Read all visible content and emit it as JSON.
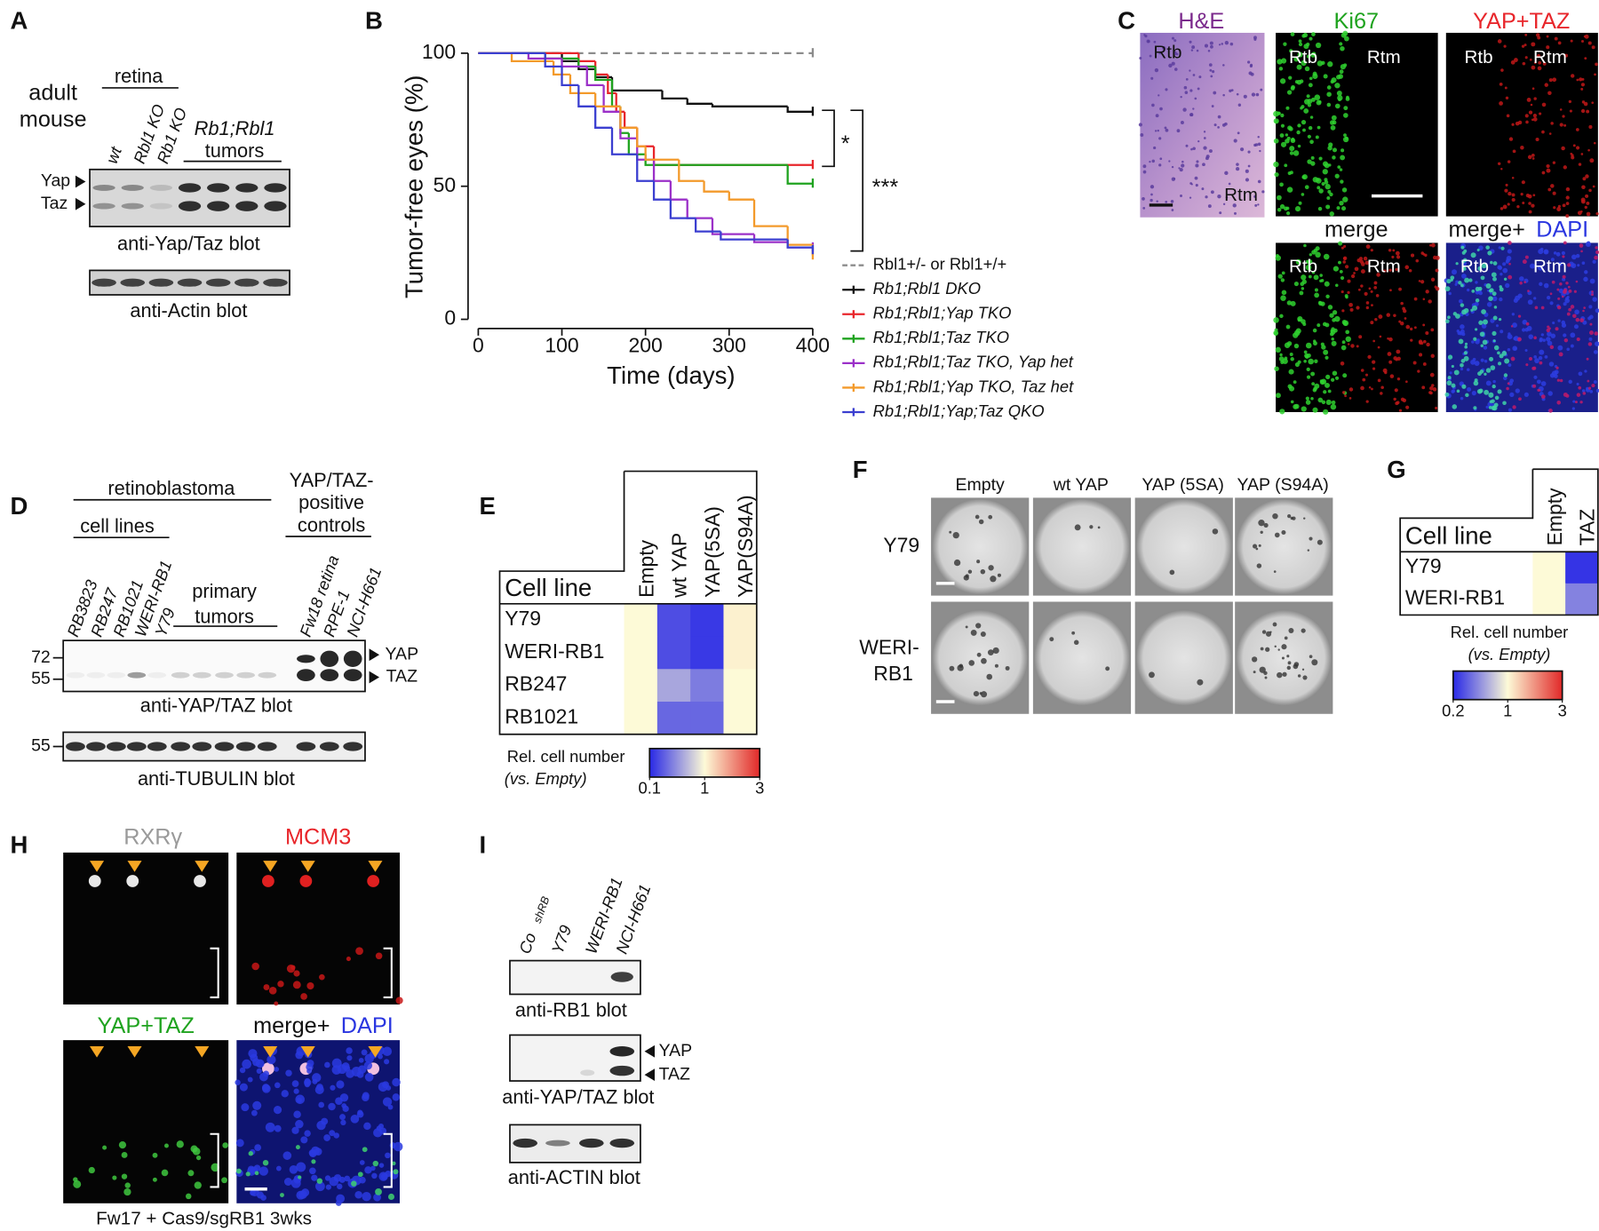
{
  "panel_labels": {
    "a": "A",
    "b": "B",
    "c": "C",
    "d": "D",
    "e": "E",
    "f": "F",
    "g": "G",
    "h": "H",
    "i": "I"
  },
  "panel_a": {
    "title": [
      "adult",
      "mouse"
    ],
    "group_retina": "retina",
    "lanes": [
      "wt",
      "Rbl1 KO",
      "Rb1 KO"
    ],
    "group_tumors": [
      "Rb1;Rbl1",
      "tumors"
    ],
    "bands": [
      "Yap",
      "Taz"
    ],
    "blot_top": "anti-Yap/Taz blot",
    "blot_bottom": "anti-Actin blot"
  },
  "chart_data": {
    "type": "line",
    "step": true,
    "xlabel": "Time (days)",
    "ylabel": "Tumor-free eyes (%)",
    "xlim": [
      0,
      400
    ],
    "ylim": [
      0,
      100
    ],
    "xticks": [
      0,
      100,
      200,
      300,
      400
    ],
    "yticks": [
      0,
      50,
      100
    ],
    "annotations": [
      "*",
      "***"
    ],
    "series": [
      {
        "name": "Rbl1+/- or Rbl1+/+",
        "color": "#8c8c8c",
        "dash": true,
        "x": [
          0,
          400
        ],
        "values": [
          100,
          100
        ]
      },
      {
        "name": "Rb1;Rbl1 DKO",
        "color": "#111111",
        "x": [
          0,
          100,
          120,
          140,
          160,
          220,
          250,
          280,
          370,
          400
        ],
        "values": [
          100,
          97,
          94,
          91,
          86,
          83,
          81,
          80,
          78,
          78
        ]
      },
      {
        "name": "Rb1;Rbl1;Yap TKO",
        "color": "#e8262b",
        "x": [
          0,
          120,
          140,
          155,
          165,
          175,
          190,
          210,
          400
        ],
        "values": [
          100,
          97,
          92,
          85,
          78,
          72,
          65,
          58,
          58
        ]
      },
      {
        "name": "Rb1;Rbl1;Taz TKO",
        "color": "#1fa31f",
        "x": [
          0,
          80,
          120,
          140,
          160,
          170,
          180,
          200,
          370,
          400
        ],
        "values": [
          100,
          98,
          95,
          90,
          80,
          70,
          62,
          58,
          51,
          51
        ]
      },
      {
        "name": "Rb1;Rbl1;Taz TKO, Yap het",
        "color": "#9b30c8",
        "x": [
          0,
          60,
          100,
          130,
          150,
          170,
          190,
          210,
          230,
          250,
          280,
          330,
          370,
          400
        ],
        "values": [
          100,
          98,
          95,
          88,
          78,
          68,
          60,
          52,
          45,
          38,
          32,
          29,
          27,
          27
        ]
      },
      {
        "name": "Rb1;Rbl1;Yap TKO, Taz het",
        "color": "#f39a2b",
        "x": [
          0,
          40,
          90,
          110,
          140,
          170,
          190,
          200,
          240,
          270,
          300,
          330,
          370,
          400
        ],
        "values": [
          100,
          97,
          92,
          85,
          80,
          72,
          65,
          60,
          52,
          48,
          45,
          35,
          28,
          24
        ]
      },
      {
        "name": "Rb1;Rbl1;Yap;Taz QKO",
        "color": "#3b3fd0",
        "x": [
          0,
          80,
          100,
          120,
          140,
          160,
          190,
          210,
          230,
          260,
          290,
          370,
          400
        ],
        "values": [
          100,
          95,
          88,
          80,
          72,
          62,
          52,
          45,
          38,
          33,
          30,
          27,
          26
        ]
      }
    ]
  },
  "panel_c": {
    "he": "H&E",
    "ki67": "Ki67",
    "yap_taz": "YAP+TAZ",
    "merge": "merge",
    "merge_dapi": [
      "merge+",
      "DAPI"
    ],
    "rtb": "Rtb",
    "rtm": "Rtm"
  },
  "panel_d": {
    "group": "retinoblastoma",
    "cell_lines": "cell lines",
    "controls": [
      "YAP/TAZ-",
      "positive",
      "controls"
    ],
    "lanes": [
      "RB3823",
      "RB247",
      "RB1021",
      "WERI-RB1",
      "Y79"
    ],
    "primary": [
      "primary",
      "tumors"
    ],
    "control_lanes": [
      "Fw18 retina",
      "RPE-1",
      "NCI-H661"
    ],
    "markers": [
      "72",
      "55"
    ],
    "bands": [
      "YAP",
      "TAZ"
    ],
    "blot_top": "anti-YAP/TAZ blot",
    "marker_bottom": "55",
    "blot_bottom": "anti-TUBULIN blot"
  },
  "panel_e": {
    "row_header": "Cell line",
    "columns": [
      "Empty",
      "wt YAP",
      "YAP(5SA)",
      "YAP(S94A)"
    ],
    "rows": [
      {
        "name": "Y79",
        "values": [
          1,
          0.15,
          0.12,
          1.05
        ]
      },
      {
        "name": "WERI-RB1",
        "values": [
          1,
          0.15,
          0.12,
          1.05
        ]
      },
      {
        "name": "RB247",
        "values": [
          1,
          0.4,
          0.25,
          1
        ]
      },
      {
        "name": "RB1021",
        "values": [
          1,
          0.2,
          0.2,
          1
        ]
      }
    ],
    "legend_title": [
      "Rel. cell number",
      "(vs. Empty)"
    ],
    "colorbar_ticks": [
      0.1,
      1,
      3
    ]
  },
  "panel_f": {
    "columns": [
      "Empty",
      "wt YAP",
      "YAP (5SA)",
      "YAP (S94A)"
    ],
    "rows": [
      [
        "Y79"
      ],
      [
        "WERI-",
        "RB1"
      ]
    ]
  },
  "panel_g": {
    "row_header": "Cell line",
    "columns": [
      "Empty",
      "TAZ"
    ],
    "rows": [
      {
        "name": "Y79",
        "values": [
          1,
          0.22
        ]
      },
      {
        "name": "WERI-RB1",
        "values": [
          1,
          0.4
        ]
      }
    ],
    "legend_title": [
      "Rel. cell number",
      "(vs. Empty)"
    ],
    "colorbar_ticks": [
      0.2,
      1,
      3
    ]
  },
  "panel_h": {
    "rxr": "RXRγ",
    "mcm3": "MCM3",
    "yap_taz": "YAP+TAZ",
    "merge_dapi": [
      "merge+",
      "DAPI"
    ],
    "caption": "Fw17 + Cas9/sgRB1 3wks"
  },
  "panel_i": {
    "lanes": [
      [
        "Co",
        "shRB"
      ],
      [
        "Y79"
      ],
      [
        "WERI-RB1"
      ],
      [
        "NCI-H661"
      ]
    ],
    "blot_rb1": "anti-RB1 blot",
    "bands": [
      "YAP",
      "TAZ"
    ],
    "blot_yap": "anti-YAP/TAZ blot",
    "blot_actin": "anti-ACTIN blot"
  }
}
